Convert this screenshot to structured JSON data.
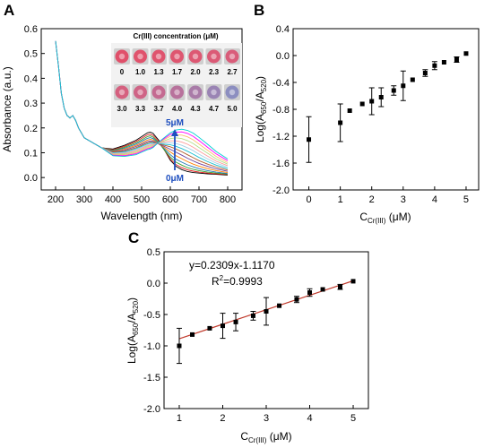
{
  "panels": {
    "a": "A",
    "b": "B",
    "c": "C"
  },
  "chart_data": [
    {
      "panel": "A",
      "type": "line",
      "xlabel": "Wavelength (nm)",
      "ylabel": "Absorbance (a.u.)",
      "xlim": [
        150,
        850
      ],
      "ylim": [
        -0.05,
        0.6
      ],
      "xticks": [
        200,
        300,
        400,
        500,
        600,
        700,
        800
      ],
      "yticks": [
        0.0,
        0.1,
        0.2,
        0.3,
        0.4,
        0.5,
        0.6
      ],
      "xtick_labels": [
        "200",
        "300",
        "400",
        "500",
        "600",
        "700",
        "800"
      ],
      "ytick_labels": [
        "0.0",
        "0.1",
        "0.2",
        "0.3",
        "0.4",
        "0.5",
        "0.6"
      ],
      "annotation_top": "5μM",
      "annotation_bottom": "0μM",
      "annotation_color": "#1f4fbf",
      "x": [
        200,
        210,
        220,
        230,
        240,
        250,
        260,
        270,
        280,
        300,
        330,
        360,
        400,
        440,
        480,
        500,
        520,
        530,
        540,
        560,
        580,
        600,
        620,
        640,
        660,
        680,
        700,
        730,
        760,
        800
      ],
      "series_colors": [
        "#000000",
        "#e31a1c",
        "#33a02c",
        "#1f78b4",
        "#ff7f00",
        "#6a3d9a",
        "#b15928",
        "#17becf",
        "#a6cee3",
        "#fb9a99",
        "#b2df8a",
        "#fdbf6f",
        "#ff00ff",
        "#00ced1"
      ],
      "series": [
        {
          "values": [
            0.55,
            0.45,
            0.34,
            0.28,
            0.25,
            0.24,
            0.25,
            0.23,
            0.2,
            0.16,
            0.14,
            0.12,
            0.115,
            0.13,
            0.15,
            0.165,
            0.18,
            0.183,
            0.178,
            0.15,
            0.11,
            0.07,
            0.045,
            0.032,
            0.024,
            0.02,
            0.018,
            0.015,
            0.013,
            0.01
          ]
        },
        {
          "values": [
            0.55,
            0.45,
            0.34,
            0.28,
            0.25,
            0.24,
            0.25,
            0.23,
            0.2,
            0.16,
            0.14,
            0.12,
            0.112,
            0.126,
            0.145,
            0.158,
            0.172,
            0.175,
            0.17,
            0.145,
            0.11,
            0.075,
            0.052,
            0.04,
            0.031,
            0.026,
            0.022,
            0.018,
            0.015,
            0.012
          ]
        },
        {
          "values": [
            0.55,
            0.45,
            0.34,
            0.28,
            0.25,
            0.24,
            0.25,
            0.23,
            0.2,
            0.16,
            0.14,
            0.12,
            0.11,
            0.122,
            0.14,
            0.152,
            0.165,
            0.168,
            0.163,
            0.14,
            0.11,
            0.082,
            0.062,
            0.05,
            0.04,
            0.033,
            0.028,
            0.022,
            0.018,
            0.014
          ]
        },
        {
          "values": [
            0.55,
            0.45,
            0.34,
            0.28,
            0.25,
            0.24,
            0.25,
            0.23,
            0.2,
            0.16,
            0.14,
            0.12,
            0.108,
            0.118,
            0.135,
            0.146,
            0.158,
            0.161,
            0.157,
            0.137,
            0.115,
            0.092,
            0.074,
            0.062,
            0.051,
            0.043,
            0.036,
            0.028,
            0.022,
            0.016
          ]
        },
        {
          "values": [
            0.55,
            0.45,
            0.34,
            0.28,
            0.25,
            0.24,
            0.25,
            0.23,
            0.2,
            0.16,
            0.14,
            0.12,
            0.106,
            0.114,
            0.13,
            0.14,
            0.151,
            0.154,
            0.151,
            0.135,
            0.12,
            0.103,
            0.088,
            0.076,
            0.064,
            0.054,
            0.046,
            0.036,
            0.028,
            0.02
          ]
        },
        {
          "values": [
            0.55,
            0.45,
            0.34,
            0.28,
            0.25,
            0.24,
            0.25,
            0.23,
            0.2,
            0.16,
            0.14,
            0.12,
            0.104,
            0.11,
            0.125,
            0.135,
            0.145,
            0.148,
            0.146,
            0.135,
            0.125,
            0.114,
            0.102,
            0.09,
            0.078,
            0.067,
            0.057,
            0.045,
            0.035,
            0.025
          ]
        },
        {
          "values": [
            0.55,
            0.45,
            0.34,
            0.28,
            0.25,
            0.24,
            0.25,
            0.23,
            0.2,
            0.16,
            0.14,
            0.12,
            0.102,
            0.106,
            0.12,
            0.13,
            0.14,
            0.143,
            0.142,
            0.136,
            0.13,
            0.124,
            0.115,
            0.104,
            0.092,
            0.08,
            0.068,
            0.054,
            0.042,
            0.03
          ]
        },
        {
          "values": [
            0.55,
            0.45,
            0.34,
            0.28,
            0.25,
            0.24,
            0.25,
            0.23,
            0.2,
            0.16,
            0.14,
            0.12,
            0.1,
            0.103,
            0.116,
            0.126,
            0.136,
            0.139,
            0.139,
            0.137,
            0.134,
            0.132,
            0.126,
            0.117,
            0.106,
            0.094,
            0.081,
            0.064,
            0.05,
            0.036
          ]
        },
        {
          "values": [
            0.55,
            0.45,
            0.34,
            0.28,
            0.25,
            0.24,
            0.25,
            0.23,
            0.2,
            0.16,
            0.14,
            0.12,
            0.098,
            0.1,
            0.112,
            0.122,
            0.132,
            0.135,
            0.136,
            0.138,
            0.139,
            0.14,
            0.137,
            0.13,
            0.12,
            0.108,
            0.094,
            0.075,
            0.058,
            0.042
          ]
        },
        {
          "values": [
            0.55,
            0.45,
            0.34,
            0.28,
            0.25,
            0.24,
            0.25,
            0.23,
            0.2,
            0.16,
            0.14,
            0.12,
            0.096,
            0.097,
            0.108,
            0.118,
            0.128,
            0.131,
            0.133,
            0.139,
            0.144,
            0.148,
            0.148,
            0.143,
            0.134,
            0.122,
            0.107,
            0.086,
            0.066,
            0.048
          ]
        },
        {
          "values": [
            0.55,
            0.45,
            0.34,
            0.28,
            0.25,
            0.24,
            0.25,
            0.23,
            0.2,
            0.16,
            0.14,
            0.12,
            0.094,
            0.094,
            0.104,
            0.114,
            0.124,
            0.127,
            0.13,
            0.14,
            0.149,
            0.157,
            0.16,
            0.157,
            0.149,
            0.137,
            0.121,
            0.098,
            0.075,
            0.054
          ]
        },
        {
          "values": [
            0.55,
            0.45,
            0.34,
            0.28,
            0.25,
            0.24,
            0.25,
            0.23,
            0.2,
            0.16,
            0.14,
            0.12,
            0.092,
            0.091,
            0.1,
            0.11,
            0.12,
            0.123,
            0.127,
            0.141,
            0.154,
            0.166,
            0.172,
            0.171,
            0.164,
            0.152,
            0.135,
            0.11,
            0.085,
            0.06
          ]
        },
        {
          "values": [
            0.55,
            0.45,
            0.34,
            0.28,
            0.25,
            0.24,
            0.25,
            0.23,
            0.2,
            0.16,
            0.14,
            0.12,
            0.09,
            0.088,
            0.096,
            0.106,
            0.116,
            0.119,
            0.124,
            0.142,
            0.158,
            0.174,
            0.183,
            0.184,
            0.178,
            0.166,
            0.149,
            0.122,
            0.095,
            0.068
          ]
        },
        {
          "values": [
            0.55,
            0.45,
            0.34,
            0.28,
            0.25,
            0.24,
            0.25,
            0.23,
            0.2,
            0.16,
            0.14,
            0.12,
            0.088,
            0.085,
            0.092,
            0.102,
            0.112,
            0.115,
            0.121,
            0.143,
            0.162,
            0.18,
            0.192,
            0.195,
            0.19,
            0.179,
            0.162,
            0.134,
            0.105,
            0.075
          ]
        }
      ],
      "inset": {
        "title": "Cr(III) concentration (μM)",
        "row1": {
          "labels": [
            "0",
            "1.0",
            "1.3",
            "1.7",
            "2.0",
            "2.3",
            "2.7"
          ]
        },
        "row2": {
          "labels": [
            "3.0",
            "3.3",
            "3.7",
            "4.0",
            "4.3",
            "4.7",
            "5.0"
          ]
        },
        "well_colors": [
          "#e0506a",
          "#e0526c",
          "#df546e",
          "#de5670",
          "#dd5873",
          "#db5a76",
          "#d95d7a",
          "#d5607f",
          "#cf6486",
          "#c46a91",
          "#b8729c",
          "#a97ba8",
          "#9a84b4",
          "#8c8ec0"
        ]
      }
    },
    {
      "panel": "B",
      "type": "scatter",
      "xlabel_prefix": "C",
      "xlabel_sub": "Cr(III)",
      "xlabel_suffix": " (μM)",
      "ylabel_prefix": "Log(A",
      "ylabel_sub1": "650",
      "ylabel_mid": "/A",
      "ylabel_sub2": "520",
      "ylabel_suffix": ")",
      "xlim": [
        -0.5,
        5.4
      ],
      "ylim": [
        -2.0,
        0.4
      ],
      "xticks": [
        0,
        1,
        2,
        3,
        4,
        5
      ],
      "yticks": [
        -2.0,
        -1.6,
        -1.2,
        -0.8,
        -0.4,
        0.0,
        0.4
      ],
      "xtick_labels": [
        "0",
        "1",
        "2",
        "3",
        "4",
        "5"
      ],
      "ytick_labels": [
        "-2.0",
        "-1.6",
        "-1.2",
        "-0.8",
        "-0.4",
        "0.0",
        "0.4"
      ],
      "points": [
        {
          "x": 0.0,
          "y": -1.25,
          "err": 0.34
        },
        {
          "x": 1.0,
          "y": -1.0,
          "err": 0.28
        },
        {
          "x": 1.3,
          "y": -0.82,
          "err": 0.0
        },
        {
          "x": 1.7,
          "y": -0.72,
          "err": 0.0
        },
        {
          "x": 2.0,
          "y": -0.68,
          "err": 0.2
        },
        {
          "x": 2.3,
          "y": -0.62,
          "err": 0.14
        },
        {
          "x": 2.7,
          "y": -0.52,
          "err": 0.07
        },
        {
          "x": 3.0,
          "y": -0.45,
          "err": 0.22
        },
        {
          "x": 3.3,
          "y": -0.36,
          "err": 0.0
        },
        {
          "x": 3.7,
          "y": -0.26,
          "err": 0.05
        },
        {
          "x": 4.0,
          "y": -0.15,
          "err": 0.06
        },
        {
          "x": 4.3,
          "y": -0.1,
          "err": 0.0
        },
        {
          "x": 4.7,
          "y": -0.06,
          "err": 0.04
        },
        {
          "x": 5.0,
          "y": 0.03,
          "err": 0.0
        }
      ]
    },
    {
      "panel": "C",
      "type": "scatter",
      "xlabel_prefix": "C",
      "xlabel_sub": "Cr(III)",
      "xlabel_suffix": " (μM)",
      "ylabel_prefix": "Log(A",
      "ylabel_sub1": "650",
      "ylabel_mid": "/A",
      "ylabel_sub2": "520",
      "ylabel_suffix": ")",
      "xlim": [
        0.65,
        5.35
      ],
      "ylim": [
        -2.0,
        0.5
      ],
      "xticks": [
        1,
        2,
        3,
        4,
        5
      ],
      "yticks": [
        -2.0,
        -1.5,
        -1.0,
        -0.5,
        0.0,
        0.5
      ],
      "xtick_labels": [
        "1",
        "2",
        "3",
        "4",
        "5"
      ],
      "ytick_labels": [
        "-2.0",
        "-1.5",
        "-1.0",
        "-0.5",
        "0.0",
        "0.5"
      ],
      "equation": "y=0.2309x-1.1170",
      "r2_prefix": "R",
      "r2_sup": "2",
      "r2_value": "=0.9993",
      "fit_slope": 0.2309,
      "fit_intercept": -1.117,
      "fit_color": "#c0392b",
      "points": [
        {
          "x": 1.0,
          "y": -1.0,
          "err": 0.28
        },
        {
          "x": 1.3,
          "y": -0.82,
          "err": 0.0
        },
        {
          "x": 1.7,
          "y": -0.72,
          "err": 0.0
        },
        {
          "x": 2.0,
          "y": -0.68,
          "err": 0.2
        },
        {
          "x": 2.3,
          "y": -0.62,
          "err": 0.14
        },
        {
          "x": 2.7,
          "y": -0.52,
          "err": 0.07
        },
        {
          "x": 3.0,
          "y": -0.45,
          "err": 0.22
        },
        {
          "x": 3.3,
          "y": -0.36,
          "err": 0.0
        },
        {
          "x": 3.7,
          "y": -0.26,
          "err": 0.05
        },
        {
          "x": 4.0,
          "y": -0.15,
          "err": 0.06
        },
        {
          "x": 4.3,
          "y": -0.1,
          "err": 0.0
        },
        {
          "x": 4.7,
          "y": -0.06,
          "err": 0.04
        },
        {
          "x": 5.0,
          "y": 0.03,
          "err": 0.0
        }
      ]
    }
  ]
}
